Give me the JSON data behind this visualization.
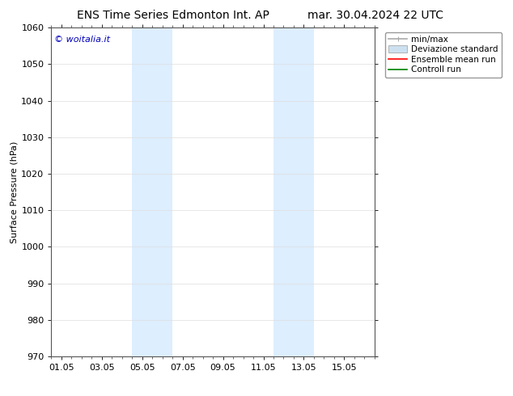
{
  "title_left": "ENS Time Series Edmonton Int. AP",
  "title_right": "mar. 30.04.2024 22 UTC",
  "ylabel": "Surface Pressure (hPa)",
  "ylim": [
    970,
    1060
  ],
  "yticks": [
    970,
    980,
    990,
    1000,
    1010,
    1020,
    1030,
    1040,
    1050,
    1060
  ],
  "xtick_labels": [
    "01.05",
    "03.05",
    "05.05",
    "07.05",
    "09.05",
    "11.05",
    "13.05",
    "15.05"
  ],
  "xtick_positions": [
    0,
    2,
    4,
    6,
    8,
    10,
    12,
    14
  ],
  "xlim": [
    -0.5,
    15.5
  ],
  "shaded_bands": [
    {
      "x_start": 3.5,
      "x_end": 5.5,
      "color": "#ddeeff"
    },
    {
      "x_start": 10.5,
      "x_end": 12.5,
      "color": "#ddeeff"
    }
  ],
  "watermark_text": "© woitalia.it",
  "watermark_color": "#0000bb",
  "legend_items": [
    {
      "label": "min/max",
      "color": "#aaaaaa",
      "lw": 1.2,
      "style": "line_with_caps"
    },
    {
      "label": "Deviazione standard",
      "color": "#cce0f0",
      "lw": 8,
      "style": "patch"
    },
    {
      "label": "Ensemble mean run",
      "color": "red",
      "lw": 1.2,
      "style": "line"
    },
    {
      "label": "Controll run",
      "color": "green",
      "lw": 1.2,
      "style": "line"
    }
  ],
  "bg_color": "#ffffff",
  "grid_color": "#dddddd",
  "title_fontsize": 10,
  "tick_fontsize": 8,
  "ylabel_fontsize": 8,
  "legend_fontsize": 7.5,
  "watermark_fontsize": 8
}
